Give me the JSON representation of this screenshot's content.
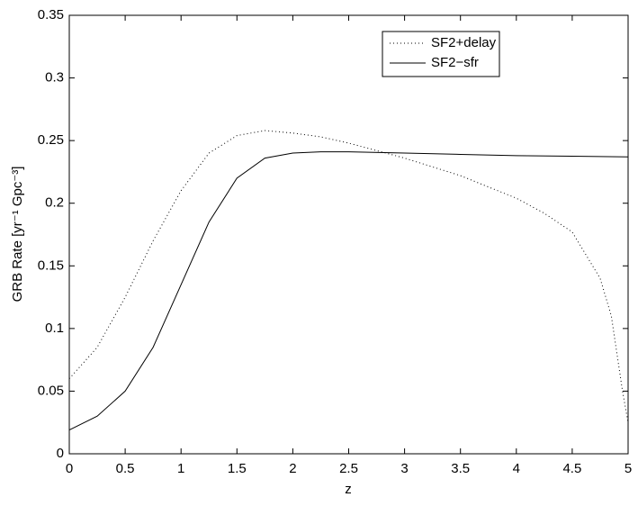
{
  "chart_data": {
    "type": "line",
    "xlabel": "z",
    "ylabel": "GRB Rate [yr⁻¹ Gpc⁻³]",
    "xlim": [
      0,
      5
    ],
    "xticks": [
      0,
      0.5,
      1,
      1.5,
      2,
      2.5,
      3,
      3.5,
      4,
      4.5,
      5
    ],
    "ylim": [
      0,
      0.35
    ],
    "yticks": [
      0,
      0.05,
      0.1,
      0.15,
      0.2,
      0.25,
      0.3,
      0.35
    ],
    "legend": "upper right",
    "grid": false,
    "series": [
      {
        "name": "SF2+delay",
        "color": "#000000",
        "style": "dotted",
        "x": [
          0,
          0.25,
          0.5,
          0.75,
          1,
          1.25,
          1.5,
          1.75,
          2,
          2.25,
          2.5,
          2.75,
          3,
          3.25,
          3.5,
          3.75,
          4,
          4.25,
          4.5,
          4.75,
          4.85,
          4.95,
          5
        ],
        "values": [
          0.06,
          0.085,
          0.125,
          0.17,
          0.21,
          0.24,
          0.254,
          0.258,
          0.256,
          0.253,
          0.248,
          0.242,
          0.236,
          0.229,
          0.222,
          0.213,
          0.204,
          0.192,
          0.177,
          0.14,
          0.11,
          0.05,
          0.025
        ]
      },
      {
        "name": "SF2−sfr",
        "color": "#000000",
        "style": "solid",
        "x": [
          0,
          0.25,
          0.5,
          0.75,
          1,
          1.25,
          1.5,
          1.75,
          2,
          2.25,
          2.5,
          3,
          3.5,
          4,
          4.5,
          5
        ],
        "values": [
          0.019,
          0.03,
          0.05,
          0.085,
          0.135,
          0.185,
          0.22,
          0.236,
          0.24,
          0.241,
          0.241,
          0.24,
          0.239,
          0.238,
          0.2375,
          0.237
        ]
      }
    ]
  }
}
